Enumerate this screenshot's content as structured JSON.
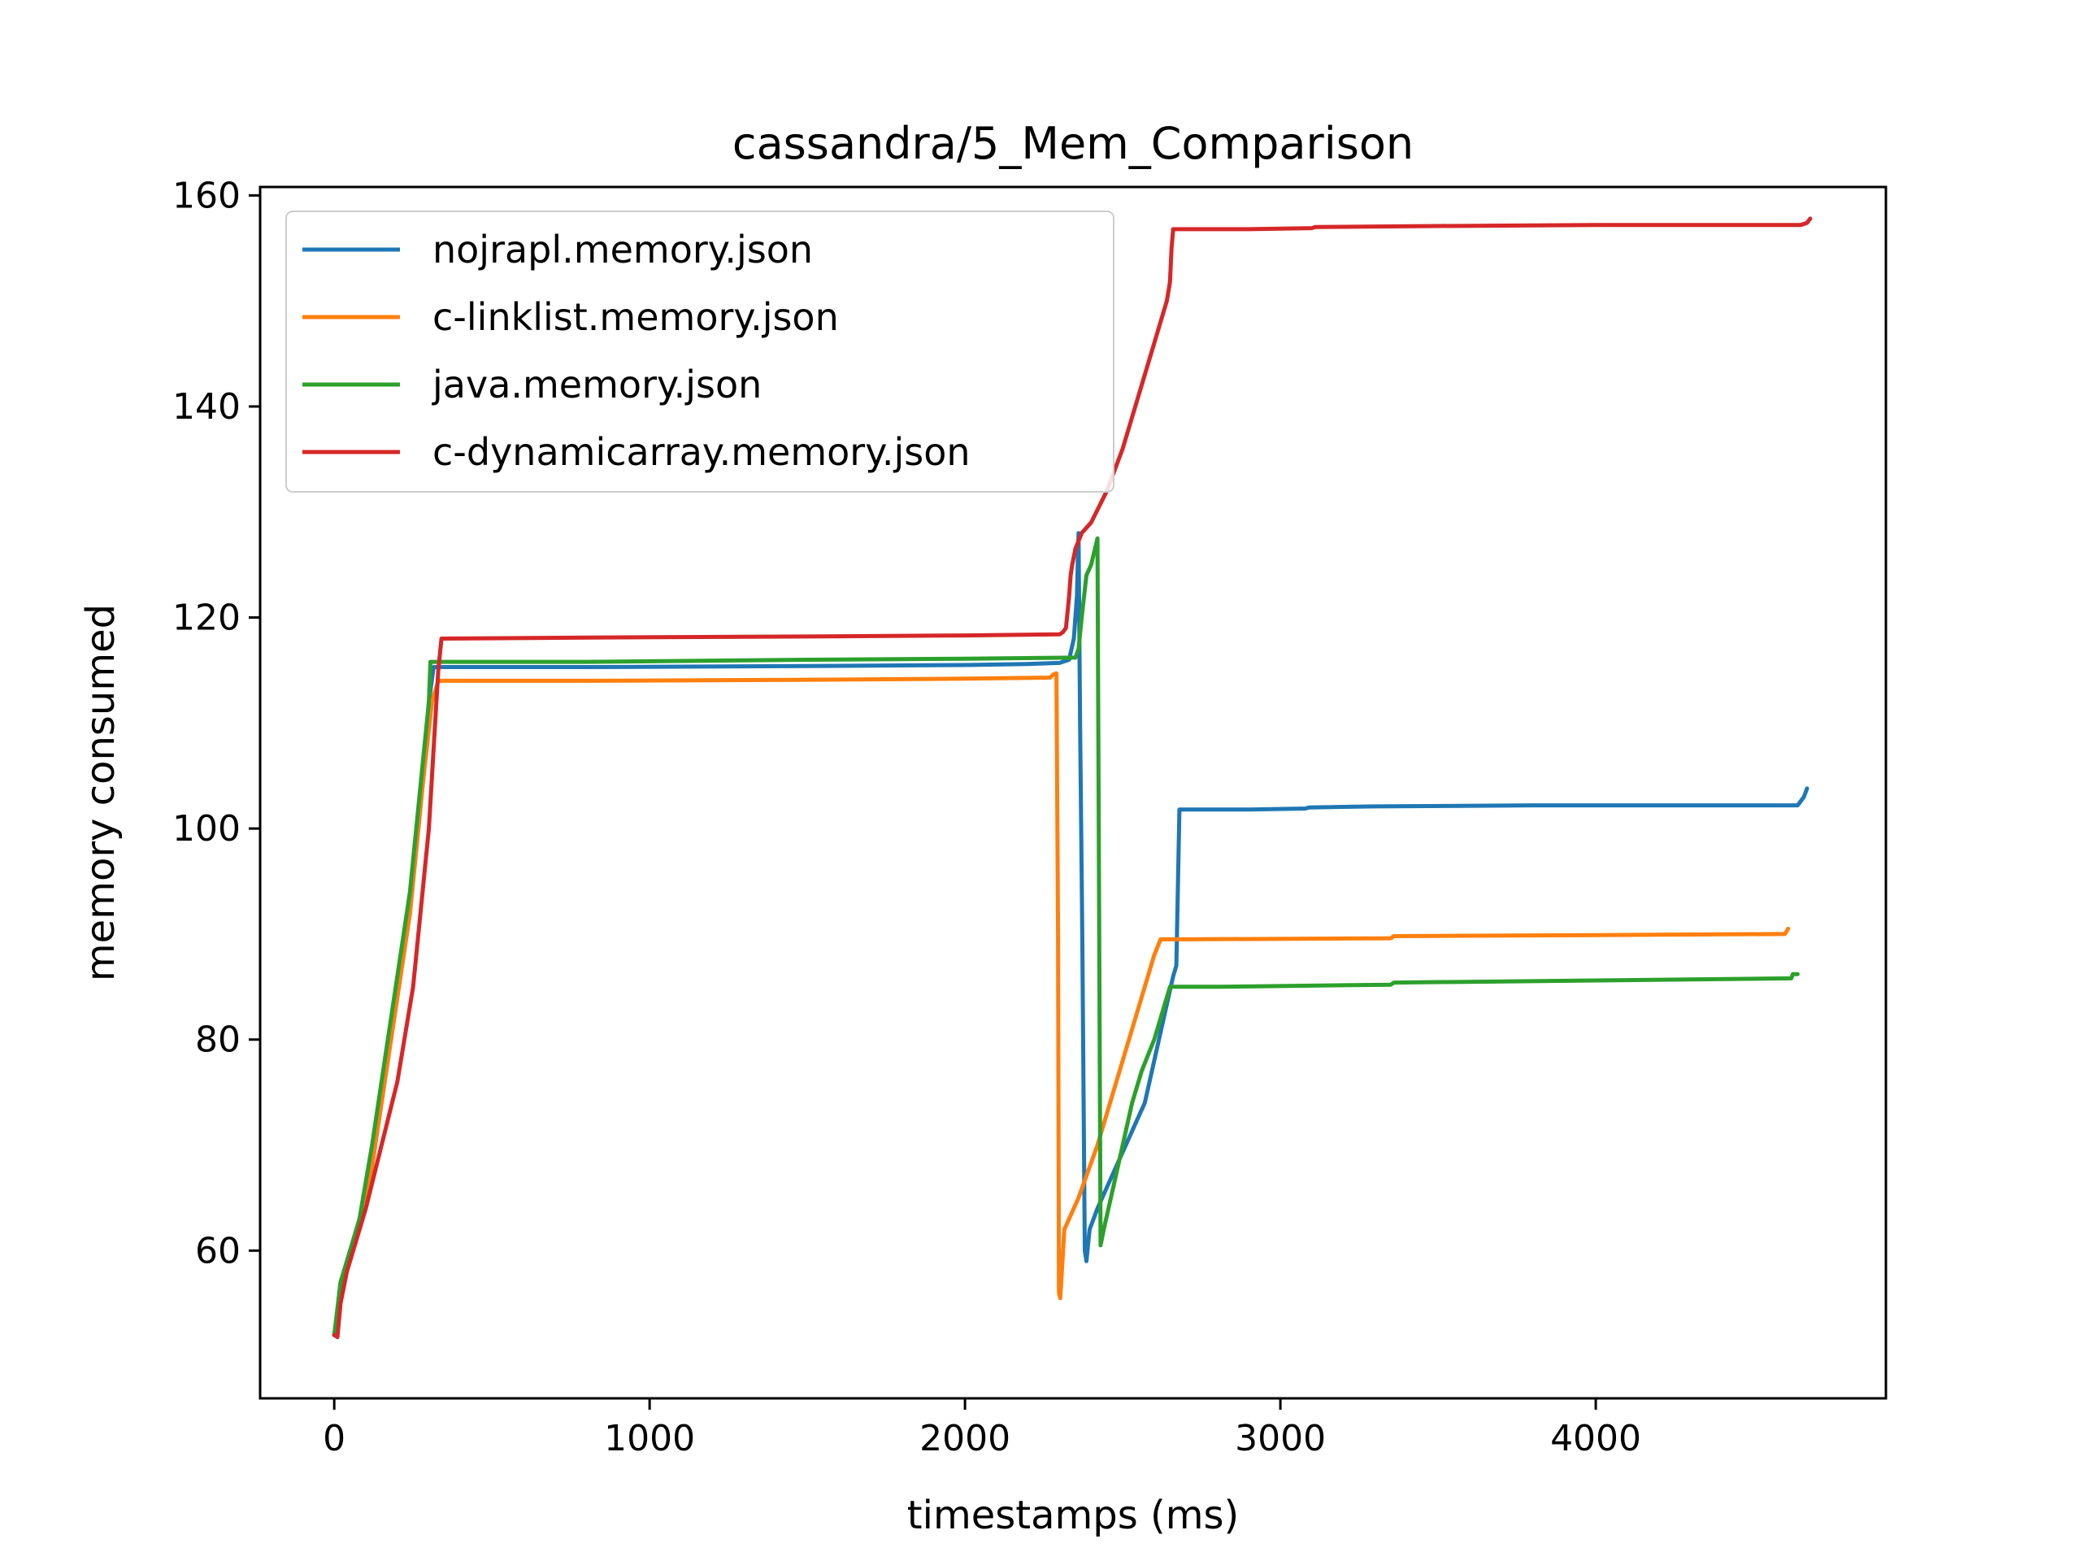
{
  "chart_data": {
    "type": "line",
    "title": "cassandra/5_Mem_Comparison",
    "xlabel": "timestamps (ms)",
    "ylabel": "memory consumed",
    "xlim": [
      -235,
      4920
    ],
    "ylim": [
      46,
      160.8
    ],
    "xticks": [
      0,
      1000,
      2000,
      3000,
      4000
    ],
    "xtick_labels": [
      "0",
      "1000",
      "2000",
      "3000",
      "4000"
    ],
    "yticks": [
      60,
      80,
      100,
      120,
      140,
      160
    ],
    "ytick_labels": [
      "60",
      "80",
      "100",
      "120",
      "140",
      "160"
    ],
    "grid": false,
    "legend_position": "top-left",
    "series": [
      {
        "name": "nojrapl.memory.json",
        "color": "#1f77b4",
        "points": [
          [
            0,
            52
          ],
          [
            20,
            56
          ],
          [
            50,
            60
          ],
          [
            80,
            62
          ],
          [
            120,
            68
          ],
          [
            160,
            76
          ],
          [
            200,
            84
          ],
          [
            240,
            92
          ],
          [
            280,
            104
          ],
          [
            300,
            112
          ],
          [
            315,
            115.3
          ],
          [
            800,
            115.3
          ],
          [
            1500,
            115.4
          ],
          [
            2000,
            115.5
          ],
          [
            2200,
            115.6
          ],
          [
            2300,
            115.7
          ],
          [
            2330,
            116
          ],
          [
            2345,
            118
          ],
          [
            2355,
            122
          ],
          [
            2360,
            128
          ],
          [
            2365,
            110
          ],
          [
            2372,
            90
          ],
          [
            2380,
            60
          ],
          [
            2385,
            59
          ],
          [
            2395,
            62
          ],
          [
            2420,
            64
          ],
          [
            2450,
            66
          ],
          [
            2480,
            68
          ],
          [
            2510,
            70
          ],
          [
            2540,
            72
          ],
          [
            2570,
            74
          ],
          [
            2600,
            78
          ],
          [
            2630,
            82
          ],
          [
            2660,
            86
          ],
          [
            2670,
            87
          ],
          [
            2680,
            101.8
          ],
          [
            2900,
            101.8
          ],
          [
            3080,
            101.9
          ],
          [
            3090,
            102
          ],
          [
            3300,
            102.1
          ],
          [
            3800,
            102.2
          ],
          [
            4200,
            102.2
          ],
          [
            4640,
            102.2
          ],
          [
            4660,
            103
          ],
          [
            4670,
            103.8
          ]
        ]
      },
      {
        "name": "c-linklist.memory.json",
        "color": "#ff7f0e",
        "points": [
          [
            0,
            52
          ],
          [
            20,
            56
          ],
          [
            50,
            60
          ],
          [
            80,
            62
          ],
          [
            120,
            68
          ],
          [
            160,
            76
          ],
          [
            200,
            84
          ],
          [
            240,
            92
          ],
          [
            280,
            104
          ],
          [
            310,
            112
          ],
          [
            330,
            114
          ],
          [
            800,
            114
          ],
          [
            1500,
            114.1
          ],
          [
            2000,
            114.2
          ],
          [
            2270,
            114.3
          ],
          [
            2280,
            114.6
          ],
          [
            2290,
            114.7
          ],
          [
            2295,
            90
          ],
          [
            2298,
            56
          ],
          [
            2302,
            55.5
          ],
          [
            2315,
            62
          ],
          [
            2360,
            65
          ],
          [
            2420,
            70
          ],
          [
            2480,
            76
          ],
          [
            2540,
            82
          ],
          [
            2600,
            88
          ],
          [
            2620,
            89.5
          ],
          [
            2700,
            89.5
          ],
          [
            3350,
            89.6
          ],
          [
            3360,
            89.8
          ],
          [
            4000,
            89.9
          ],
          [
            4580,
            90
          ],
          [
            4600,
            90
          ],
          [
            4610,
            90.5
          ]
        ]
      },
      {
        "name": "java.memory.json",
        "color": "#2ca02c",
        "points": [
          [
            0,
            52
          ],
          [
            20,
            57
          ],
          [
            50,
            60
          ],
          [
            80,
            63
          ],
          [
            120,
            70
          ],
          [
            160,
            78
          ],
          [
            200,
            86
          ],
          [
            240,
            94
          ],
          [
            280,
            106
          ],
          [
            300,
            112
          ],
          [
            305,
            115.8
          ],
          [
            800,
            115.8
          ],
          [
            1500,
            116
          ],
          [
            2000,
            116.1
          ],
          [
            2350,
            116.2
          ],
          [
            2360,
            117
          ],
          [
            2370,
            120
          ],
          [
            2385,
            124
          ],
          [
            2400,
            125
          ],
          [
            2420,
            127.5
          ],
          [
            2430,
            60.5
          ],
          [
            2440,
            62
          ],
          [
            2470,
            66
          ],
          [
            2500,
            70
          ],
          [
            2530,
            74
          ],
          [
            2560,
            77
          ],
          [
            2600,
            80
          ],
          [
            2630,
            83
          ],
          [
            2650,
            85
          ],
          [
            2800,
            85
          ],
          [
            3350,
            85.2
          ],
          [
            3360,
            85.4
          ],
          [
            4000,
            85.6
          ],
          [
            4620,
            85.8
          ],
          [
            4625,
            86.2
          ],
          [
            4640,
            86.2
          ]
        ]
      },
      {
        "name": "c-dynamicarray.memory.json",
        "color": "#d62728",
        "points": [
          [
            0,
            52
          ],
          [
            10,
            51.8
          ],
          [
            20,
            55
          ],
          [
            40,
            58
          ],
          [
            60,
            60
          ],
          [
            100,
            64
          ],
          [
            150,
            70
          ],
          [
            200,
            76
          ],
          [
            250,
            85
          ],
          [
            300,
            100
          ],
          [
            320,
            110
          ],
          [
            330,
            115
          ],
          [
            340,
            118
          ],
          [
            800,
            118.1
          ],
          [
            1500,
            118.2
          ],
          [
            2000,
            118.3
          ],
          [
            2300,
            118.4
          ],
          [
            2310,
            118.6
          ],
          [
            2320,
            119
          ],
          [
            2330,
            122
          ],
          [
            2335,
            124
          ],
          [
            2340,
            125
          ],
          [
            2350,
            126.5
          ],
          [
            2370,
            128
          ],
          [
            2400,
            129
          ],
          [
            2450,
            132
          ],
          [
            2500,
            136
          ],
          [
            2550,
            141
          ],
          [
            2600,
            146
          ],
          [
            2640,
            150
          ],
          [
            2650,
            151.8
          ],
          [
            2655,
            155
          ],
          [
            2660,
            156.8
          ],
          [
            2900,
            156.8
          ],
          [
            3100,
            156.9
          ],
          [
            3110,
            157
          ],
          [
            3500,
            157.1
          ],
          [
            4000,
            157.2
          ],
          [
            4650,
            157.2
          ],
          [
            4670,
            157.4
          ],
          [
            4680,
            157.8
          ]
        ]
      }
    ]
  }
}
